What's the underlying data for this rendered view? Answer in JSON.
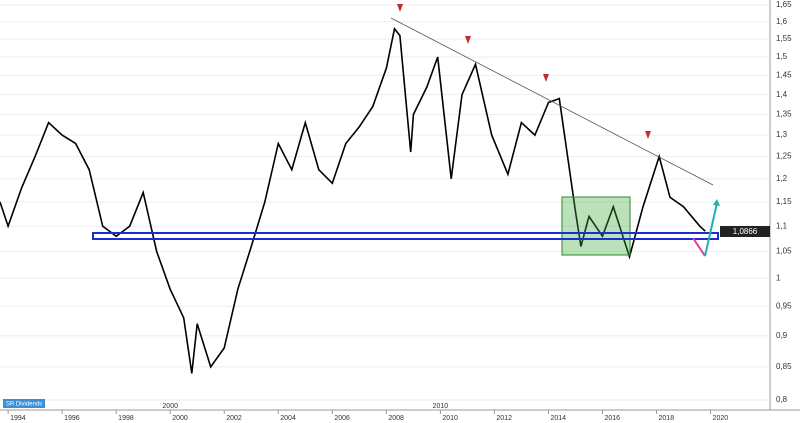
{
  "chart_data": {
    "type": "line",
    "log_scale": true,
    "color": "#000000",
    "x": [
      1993.7,
      1994,
      1994.5,
      1995,
      1995.5,
      1996,
      1996.5,
      1997,
      1997.5,
      1998,
      1998.5,
      1999,
      1999.5,
      2000,
      2000.5,
      2000.8,
      2001,
      2001.5,
      2002,
      2002.5,
      2003,
      2003.5,
      2004,
      2004.5,
      2005,
      2005.5,
      2006,
      2006.5,
      2007,
      2007.5,
      2008,
      2008.3,
      2008.5,
      2008.9,
      2009,
      2009.5,
      2009.9,
      2010.4,
      2010.8,
      2011.3,
      2011.9,
      2012.5,
      2013,
      2013.5,
      2014,
      2014.4,
      2015,
      2015.2,
      2015.5,
      2016,
      2016.4,
      2017,
      2017.5,
      2018.1,
      2018.5,
      2019,
      2019.6,
      2019.8
    ],
    "values": [
      1.15,
      1.1,
      1.18,
      1.25,
      1.33,
      1.3,
      1.28,
      1.22,
      1.1,
      1.08,
      1.1,
      1.17,
      1.05,
      0.98,
      0.93,
      0.84,
      0.92,
      0.85,
      0.88,
      0.98,
      1.06,
      1.15,
      1.28,
      1.22,
      1.33,
      1.22,
      1.19,
      1.28,
      1.32,
      1.37,
      1.47,
      1.58,
      1.56,
      1.26,
      1.35,
      1.42,
      1.5,
      1.2,
      1.4,
      1.48,
      1.3,
      1.21,
      1.33,
      1.3,
      1.38,
      1.39,
      1.13,
      1.06,
      1.12,
      1.08,
      1.14,
      1.04,
      1.14,
      1.25,
      1.16,
      1.14,
      1.1,
      1.09
    ],
    "xlim": [
      1993.7,
      2022.2
    ],
    "xticks": [
      1994,
      1996,
      1998,
      2000,
      2002,
      2004,
      2006,
      2008,
      2010,
      2012,
      2014,
      2016,
      2018,
      2020
    ],
    "major_xticks": [
      2000,
      2010
    ],
    "ylim": [
      0.8,
      1.65
    ],
    "yticks": [
      {
        "value": 1.65,
        "label": "1,65"
      },
      {
        "value": 1.6,
        "label": "1,6"
      },
      {
        "value": 1.55,
        "label": "1,55"
      },
      {
        "value": 1.5,
        "label": "1,5"
      },
      {
        "value": 1.45,
        "label": "1,45"
      },
      {
        "value": 1.4,
        "label": "1,4"
      },
      {
        "value": 1.35,
        "label": "1,35"
      },
      {
        "value": 1.3,
        "label": "1,3"
      },
      {
        "value": 1.25,
        "label": "1,25"
      },
      {
        "value": 1.2,
        "label": "1,2"
      },
      {
        "value": 1.15,
        "label": "1,15"
      },
      {
        "value": 1.1,
        "label": "1,1"
      },
      {
        "value": 1.05,
        "label": "1,05"
      },
      1,
      {
        "value": 0.95,
        "label": "0,95"
      },
      {
        "value": 0.9,
        "label": "0,9"
      },
      {
        "value": 0.85,
        "label": "0,85"
      },
      {
        "value": 0.8,
        "label": "0,8"
      }
    ],
    "price_label": "1,0866",
    "badge": "SR Dividends"
  }
}
